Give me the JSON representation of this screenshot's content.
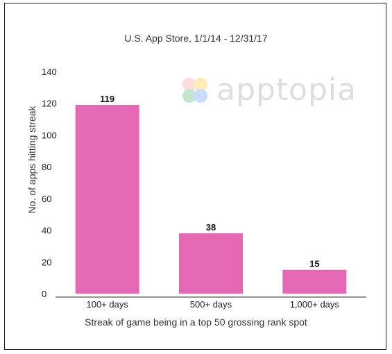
{
  "watermark": {
    "text": "apptopia"
  },
  "chart_data": {
    "type": "bar",
    "title": "U.S. App Store, 1/1/14 - 12/31/17",
    "xlabel": "Streak of game being in a top 50 grossing rank spot",
    "ylabel": "No. of apps hitting streak",
    "categories": [
      "100+ days",
      "500+ days",
      "1,000+ days"
    ],
    "values": [
      119,
      38,
      15
    ],
    "data_labels": [
      "119",
      "38",
      "15"
    ],
    "ylim": [
      0,
      140
    ],
    "yticks": [
      0,
      20,
      40,
      60,
      80,
      100,
      120,
      140
    ],
    "grid": false,
    "bar_color": "#e468b4",
    "axis_color": "#555555"
  }
}
